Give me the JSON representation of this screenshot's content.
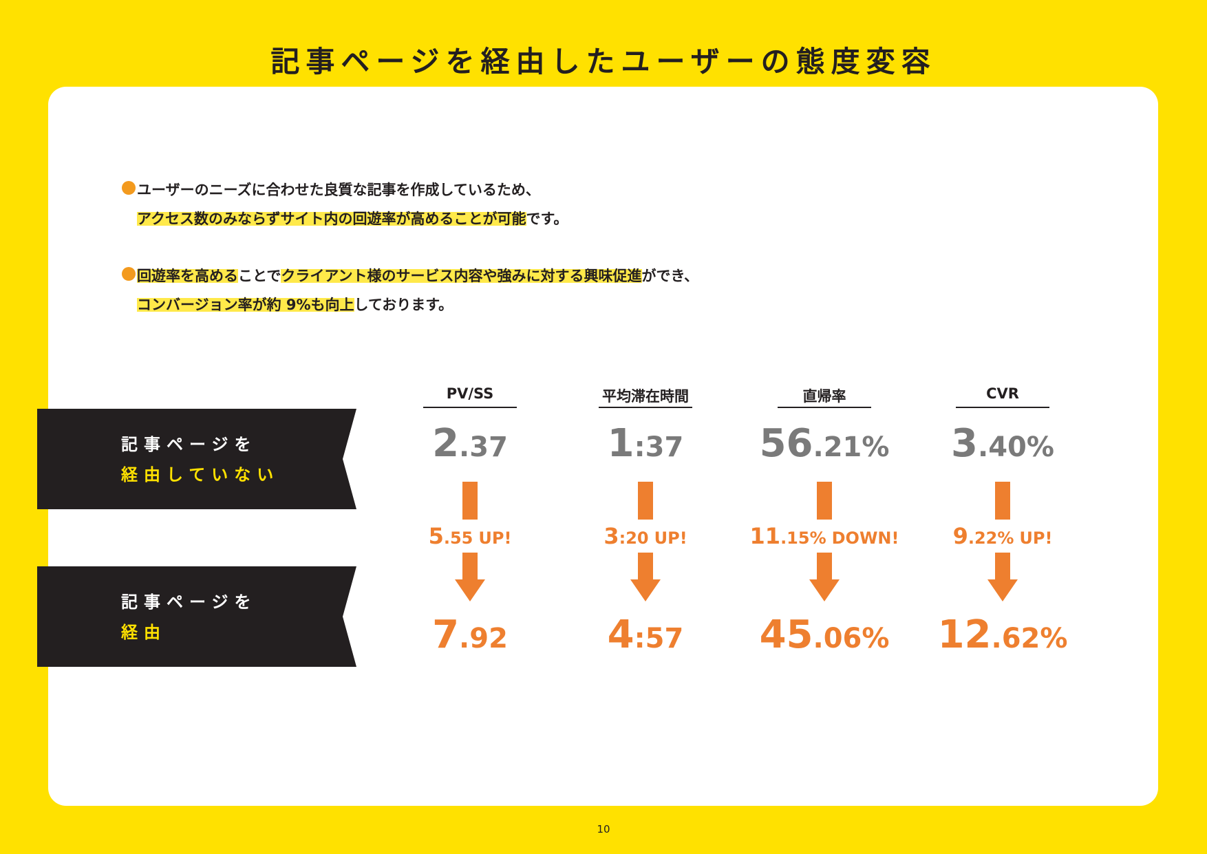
{
  "header": {
    "title": "記事ページを経由したユーザーの態度変容"
  },
  "bullets": [
    {
      "lines": [
        [
          {
            "text": "ユーザーのニーズに合わせた良質な記事を作成しているため、",
            "highlight": false
          }
        ],
        [
          {
            "text": "アクセス数のみならずサイト内の回遊率が高めることが可能",
            "highlight": true
          },
          {
            "text": "です。",
            "highlight": false
          }
        ]
      ]
    },
    {
      "lines": [
        [
          {
            "text": "回遊率を高める",
            "highlight": true
          },
          {
            "text": "ことで",
            "highlight": false
          },
          {
            "text": "クライアント様のサービス内容や強みに対する興味促進",
            "highlight": true
          },
          {
            "text": "ができ、",
            "highlight": false
          }
        ],
        [
          {
            "text": "コンバージョン率が約 9%も向上",
            "highlight": true
          },
          {
            "text": "しております。",
            "highlight": false
          }
        ]
      ]
    }
  ],
  "rows": [
    {
      "line1": "記事ページを",
      "line2": "経由していない"
    },
    {
      "line1": "記事ページを",
      "line2": "経由"
    }
  ],
  "columns": [
    {
      "header": "PV/SS",
      "before": {
        "main": "2",
        "sub": ".37"
      },
      "change": {
        "main": "5",
        "sub": ".55",
        "label": "UP!"
      },
      "after": {
        "main": "7",
        "sub": ".92"
      }
    },
    {
      "header": "平均滞在時間",
      "before": {
        "main": "1",
        "sub": ":37"
      },
      "change": {
        "main": "3",
        "sub": ":20",
        "label": "UP!"
      },
      "after": {
        "main": "4",
        "sub": ":57"
      }
    },
    {
      "header": "直帰率",
      "before": {
        "main": "56",
        "sub": ".21%"
      },
      "change": {
        "main": "11",
        "sub": ".15%",
        "label": "DOWN!"
      },
      "after": {
        "main": "45",
        "sub": ".06%"
      }
    },
    {
      "header": "CVR",
      "before": {
        "main": "3",
        "sub": ".40%"
      },
      "change": {
        "main": "9",
        "sub": ".22%",
        "label": "UP!"
      },
      "after": {
        "main": "12",
        "sub": ".62%"
      }
    }
  ],
  "footer": {
    "page": "10"
  }
}
